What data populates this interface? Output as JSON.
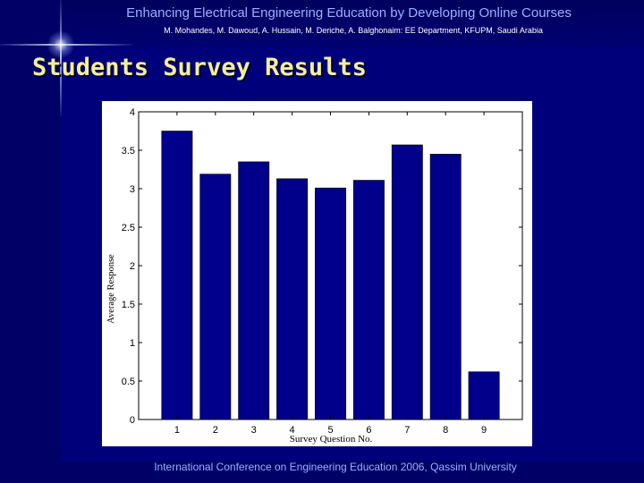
{
  "header": {
    "title": "Enhancing Electrical Engineering Education by Developing Online Courses",
    "authors": "M. Mohandes, M. Dawoud, A. Hussain, M. Deriche, A. Balghonaim: EE Department, KFUPM, Saudi Arabia"
  },
  "slide": {
    "title": "Students Survey Results"
  },
  "footer": {
    "text": "International Conference on Engineering Education 2006,  Qassim University"
  },
  "colors": {
    "background": "#00007a",
    "title": "#f4ee9a",
    "header_text": "#9bb0ff",
    "bar": "#00008b",
    "plot_background": "#ffffff"
  },
  "chart_data": {
    "type": "bar",
    "categories": [
      "1",
      "2",
      "3",
      "4",
      "5",
      "6",
      "7",
      "8",
      "9"
    ],
    "values": [
      3.75,
      3.19,
      3.35,
      3.13,
      3.01,
      3.11,
      3.57,
      3.45,
      0.62
    ],
    "xlabel": "Survey Question No.",
    "ylabel": "Average Response",
    "ylim": [
      0,
      4
    ],
    "yticks": [
      "0",
      "0.5",
      "1",
      "1.5",
      "2",
      "2.5",
      "3",
      "3.5",
      "4"
    ],
    "grid": false
  }
}
